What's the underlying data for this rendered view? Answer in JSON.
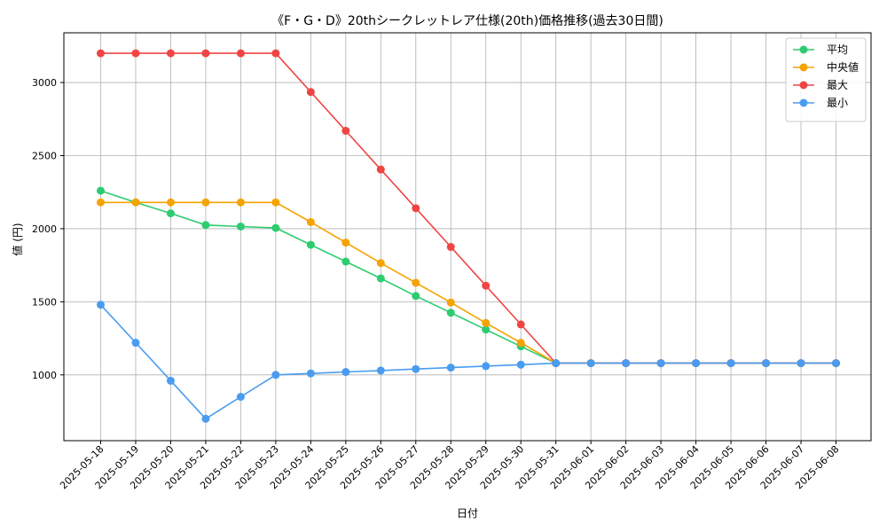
{
  "chart_data": {
    "type": "line",
    "title": "《F・G・D》20thシークレットレア仕様(20th)価格推移(過去30日間)",
    "xlabel": "日付",
    "ylabel": "値 (円)",
    "x": [
      "2025-05-18",
      "2025-05-19",
      "2025-05-20",
      "2025-05-21",
      "2025-05-22",
      "2025-05-23",
      "2025-05-24",
      "2025-05-25",
      "2025-05-26",
      "2025-05-27",
      "2025-05-28",
      "2025-05-29",
      "2025-05-30",
      "2025-05-31",
      "2025-06-01",
      "2025-06-02",
      "2025-06-03",
      "2025-06-04",
      "2025-06-05",
      "2025-06-06",
      "2025-06-07",
      "2025-06-08"
    ],
    "ylim": [
      550,
      3340
    ],
    "yticks": [
      1000,
      1500,
      2000,
      2500,
      3000
    ],
    "grid": true,
    "legend_position": "top-right",
    "series": [
      {
        "name": "平均",
        "color": "#2ecc71",
        "values": [
          2260,
          2180,
          2105,
          2025,
          2015,
          2005,
          1890,
          1775,
          1660,
          1540,
          1425,
          1310,
          1195,
          1080,
          1080,
          1080,
          1080,
          1080,
          1080,
          1080,
          1080,
          1080
        ]
      },
      {
        "name": "中央値",
        "color": "#f5a300",
        "values": [
          2180,
          2180,
          2180,
          2180,
          2180,
          2180,
          2045,
          1905,
          1765,
          1630,
          1495,
          1355,
          1220,
          1080,
          1080,
          1080,
          1080,
          1080,
          1080,
          1080,
          1080,
          1080
        ]
      },
      {
        "name": "最大",
        "color": "#f04545",
        "values": [
          3200,
          3200,
          3200,
          3200,
          3200,
          3200,
          2935,
          2670,
          2405,
          2140,
          1875,
          1610,
          1345,
          1080,
          1080,
          1080,
          1080,
          1080,
          1080,
          1080,
          1080,
          1080
        ]
      },
      {
        "name": "最小",
        "color": "#4a9cf0",
        "values": [
          1480,
          1220,
          960,
          700,
          850,
          1000,
          1010,
          1020,
          1030,
          1040,
          1050,
          1060,
          1070,
          1080,
          1080,
          1080,
          1080,
          1080,
          1080,
          1080,
          1080,
          1080
        ]
      }
    ]
  }
}
